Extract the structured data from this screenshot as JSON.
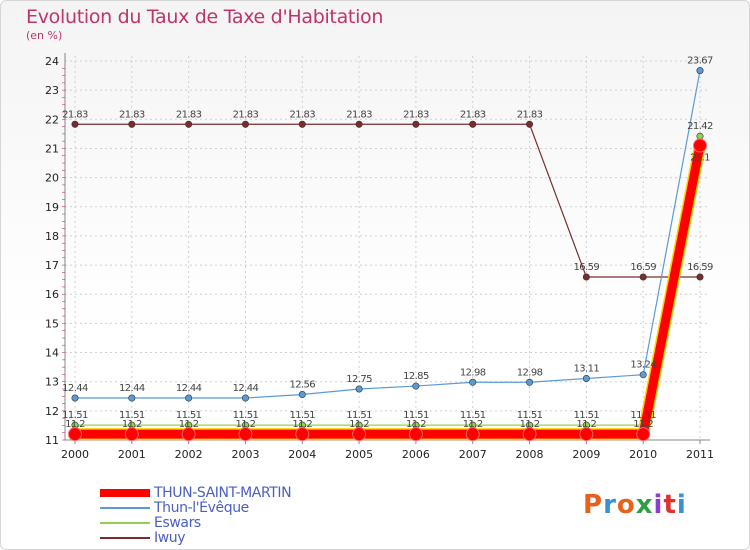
{
  "title": "Evolution du Taux de Taxe d'Habitation",
  "subtitle": "(en %)",
  "logo": {
    "text": "Proxiti",
    "colors": [
      "#e8601c",
      "#3c8fd0",
      "#e8601c",
      "#2f9e44",
      "#8a3fd1",
      "#e03131",
      "#3c8fd0"
    ]
  },
  "chart_data": {
    "type": "line",
    "x": [
      "2000",
      "2001",
      "2002",
      "2003",
      "2004",
      "2005",
      "2006",
      "2007",
      "2008",
      "2009",
      "2010",
      "2011"
    ],
    "ylim": [
      11,
      24
    ],
    "yticks": [
      "11",
      "12",
      "13",
      "14",
      "15",
      "16",
      "17",
      "18",
      "19",
      "20",
      "21",
      "22",
      "23",
      "24"
    ],
    "grid": true,
    "legend_position": "bottom-left",
    "series": [
      {
        "name": "THUN-SAINT-MARTIN",
        "color": "#ff0000",
        "values": [
          11.2,
          11.2,
          11.2,
          11.2,
          11.2,
          11.2,
          11.2,
          11.2,
          11.2,
          11.2,
          11.2,
          21.1
        ],
        "labels": [
          "11.2",
          "11.2",
          "11.2",
          "11.2",
          "11.2",
          "11.2",
          "11.2",
          "11.2",
          "11.2",
          "11.2",
          "11.2",
          "21.1"
        ]
      },
      {
        "name": "Thun-l'Évêque",
        "color": "#5a9bd5",
        "values": [
          12.44,
          12.44,
          12.44,
          12.44,
          12.56,
          12.75,
          12.85,
          12.98,
          12.98,
          13.11,
          13.24,
          23.67
        ],
        "labels": [
          "12.44",
          "12.44",
          "12.44",
          "12.44",
          "12.56",
          "12.75",
          "12.85",
          "12.98",
          "12.98",
          "13.11",
          "13.24",
          "23.67"
        ]
      },
      {
        "name": "Eswars",
        "color": "#92d050",
        "values": [
          11.51,
          11.51,
          11.51,
          11.51,
          11.51,
          11.51,
          11.51,
          11.51,
          11.51,
          11.51,
          11.51,
          21.42
        ],
        "labels": [
          "11.51",
          "11.51",
          "11.51",
          "11.51",
          "11.51",
          "11.51",
          "11.51",
          "11.51",
          "11.51",
          "11.51",
          "11.51",
          "21.42"
        ]
      },
      {
        "name": "Iwuy",
        "color": "#7b2c2c",
        "values": [
          21.83,
          21.83,
          21.83,
          21.83,
          21.83,
          21.83,
          21.83,
          21.83,
          21.83,
          16.59,
          16.59,
          16.59
        ],
        "labels": [
          "21.83",
          "21.83",
          "21.83",
          "21.83",
          "21.83",
          "21.83",
          "21.83",
          "21.83",
          "21.83",
          "16.59",
          "16.59",
          "16.59"
        ]
      }
    ]
  }
}
